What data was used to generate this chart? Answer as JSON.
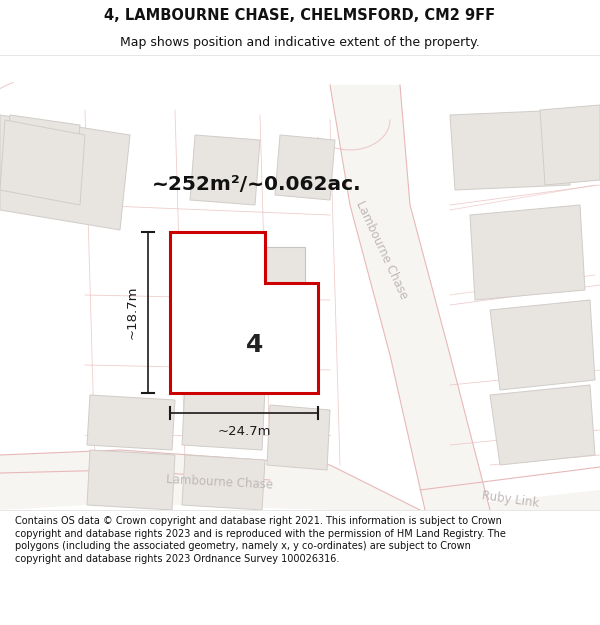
{
  "title": "4, LAMBOURNE CHASE, CHELMSFORD, CM2 9FF",
  "subtitle": "Map shows position and indicative extent of the property.",
  "area_text": "~252m²/~0.062ac.",
  "width_label": "~24.7m",
  "height_label": "~18.7m",
  "number_label": "4",
  "road_label_diag": "Lambourne Chase",
  "road_label_bottom": "Lambourne Chase",
  "road_label_ruby": "Ruby Link",
  "footer": "Contains OS data © Crown copyright and database right 2021. This information is subject to Crown copyright and database rights 2023 and is reproduced with the permission of HM Land Registry. The polygons (including the associated geometry, namely x, y co-ordinates) are subject to Crown copyright and database rights 2023 Ordnance Survey 100026316.",
  "map_bg": "#f7f5f2",
  "road_outline_color": "#e8b8b8",
  "road_fill": "#f7f5f2",
  "building_fill": "#e8e5e1",
  "building_edge": "#d0ccc8",
  "property_red": "#cc0000",
  "dim_color": "#1a1a1a",
  "road_text_color": "#c0b8b8",
  "area_text_color": "#111111",
  "footer_color": "#111111",
  "title_color": "#111111"
}
